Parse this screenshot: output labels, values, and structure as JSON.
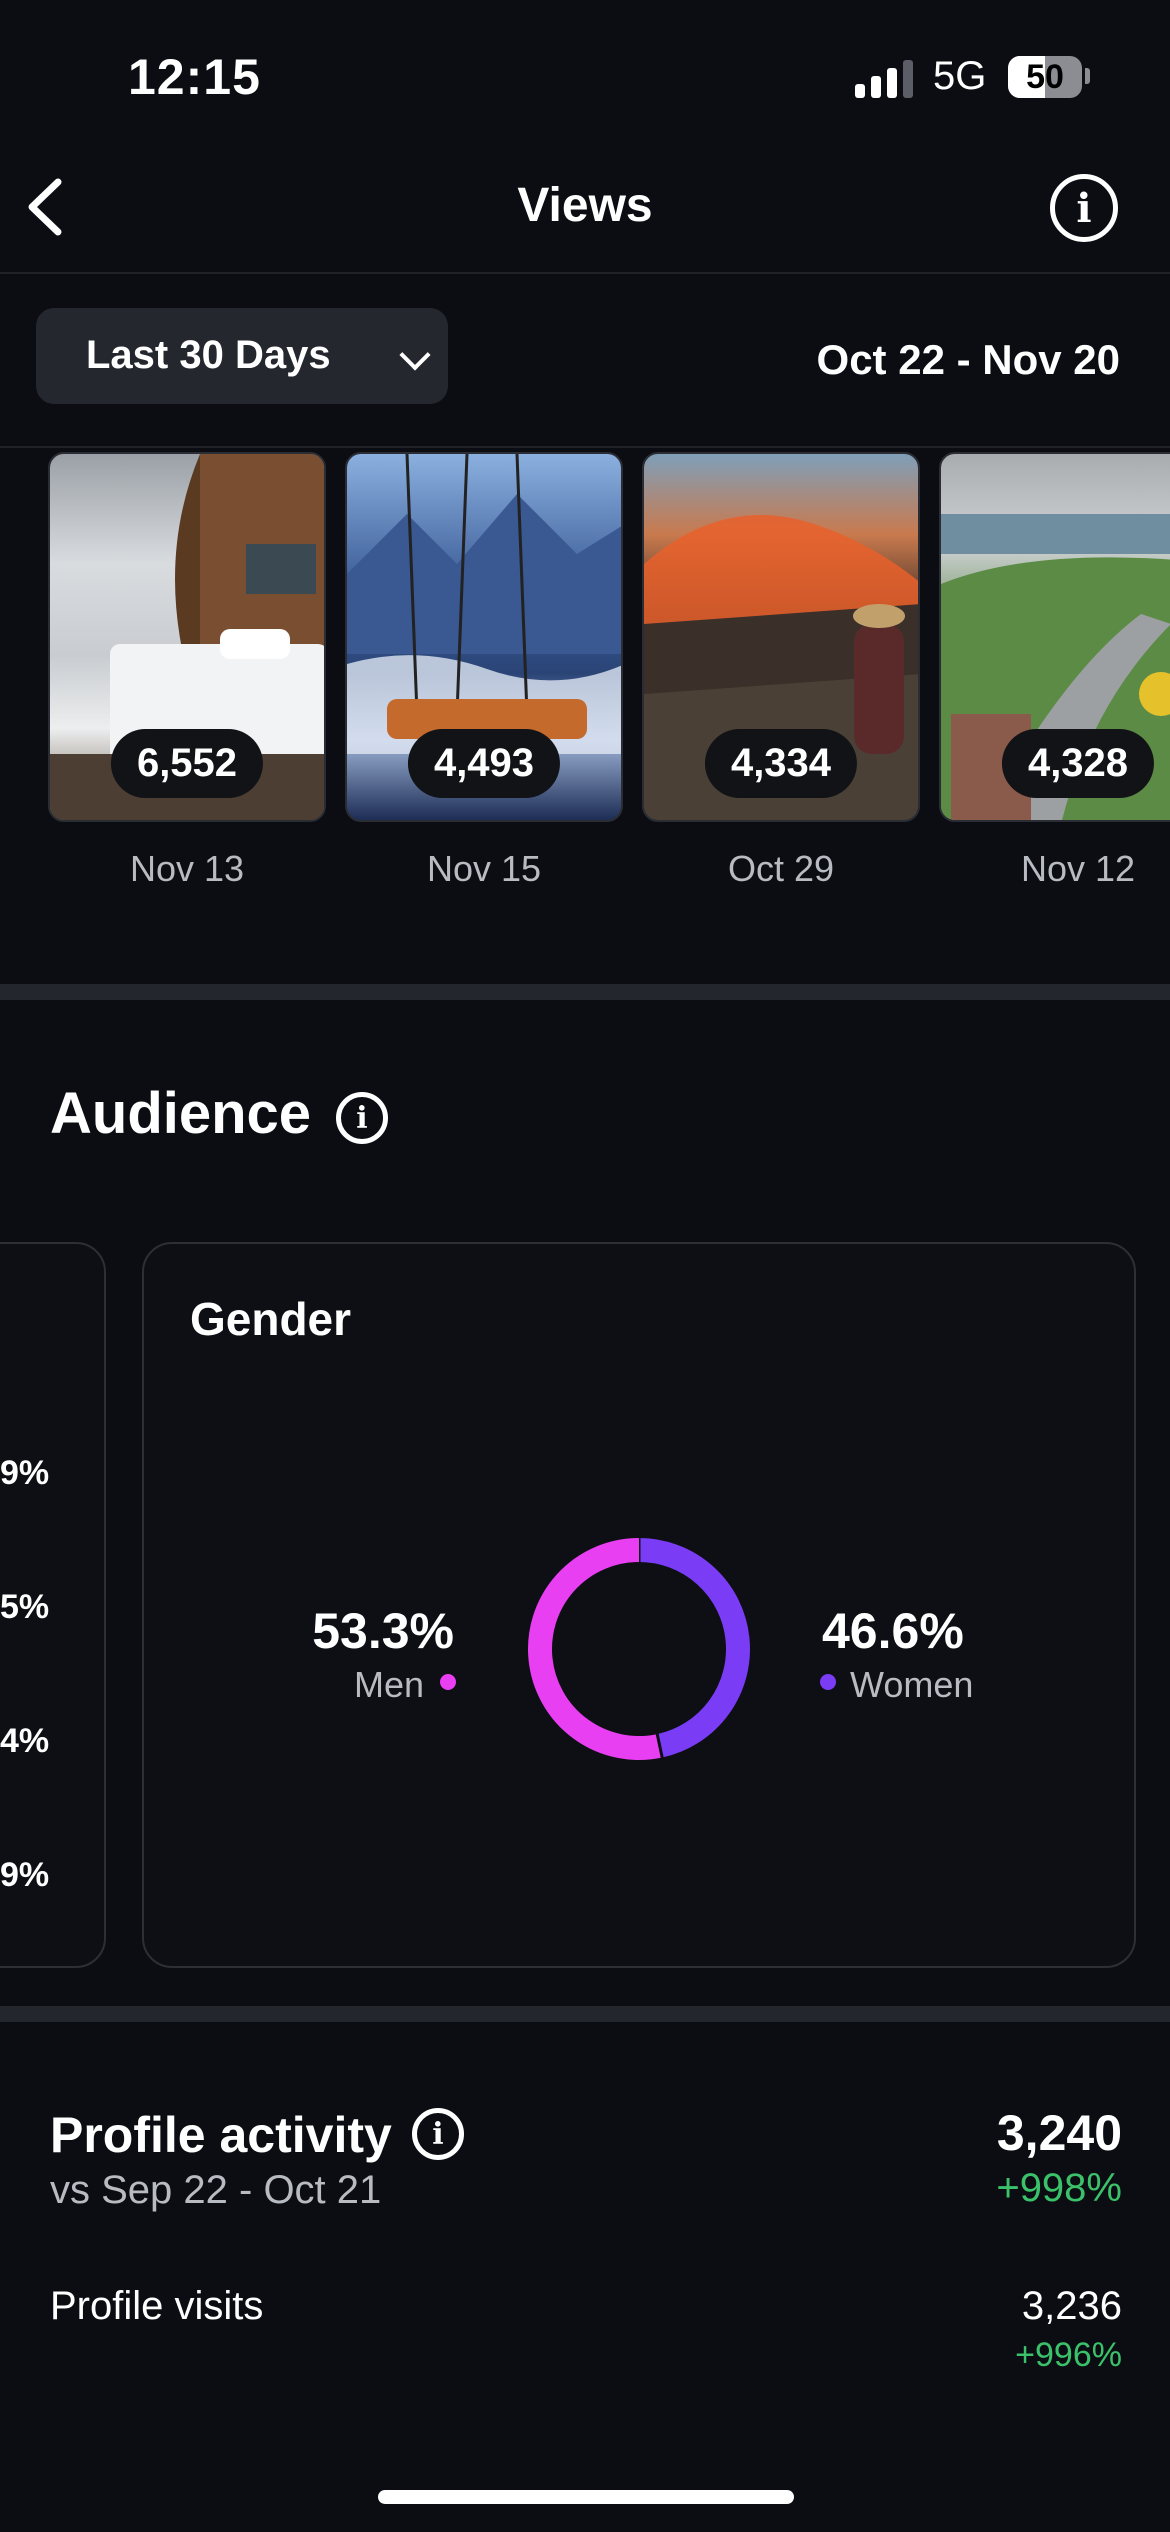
{
  "status_bar": {
    "time": "12:15",
    "network": "5G",
    "battery": "50"
  },
  "header": {
    "title": "Views"
  },
  "filter": {
    "range_label": "Last 30 Days",
    "date_range": "Oct 22 - Nov 20"
  },
  "top_posts": [
    {
      "views": "6,552",
      "date": "Nov 13"
    },
    {
      "views": "4,493",
      "date": "Nov 15"
    },
    {
      "views": "4,334",
      "date": "Oct 29"
    },
    {
      "views": "4,328",
      "date": "Nov 12"
    }
  ],
  "audience": {
    "title": "Audience",
    "partial_card_values": [
      "9%",
      "5%",
      "4%",
      "9%"
    ],
    "gender": {
      "title": "Gender",
      "men_pct": "53.3%",
      "men_label": "Men",
      "women_pct": "46.6%",
      "women_label": "Women"
    }
  },
  "chart_data": {
    "type": "pie",
    "categories": [
      "Men",
      "Women"
    ],
    "values": [
      53.3,
      46.6
    ],
    "colors": [
      "#e93ff2",
      "#7b3cf5"
    ]
  },
  "profile_activity": {
    "title": "Profile activity",
    "comparison": "vs Sep 22 - Oct 21",
    "total": "3,240",
    "total_change": "+998%",
    "visits_label": "Profile visits",
    "visits_value": "3,236",
    "visits_change": "+996%"
  }
}
